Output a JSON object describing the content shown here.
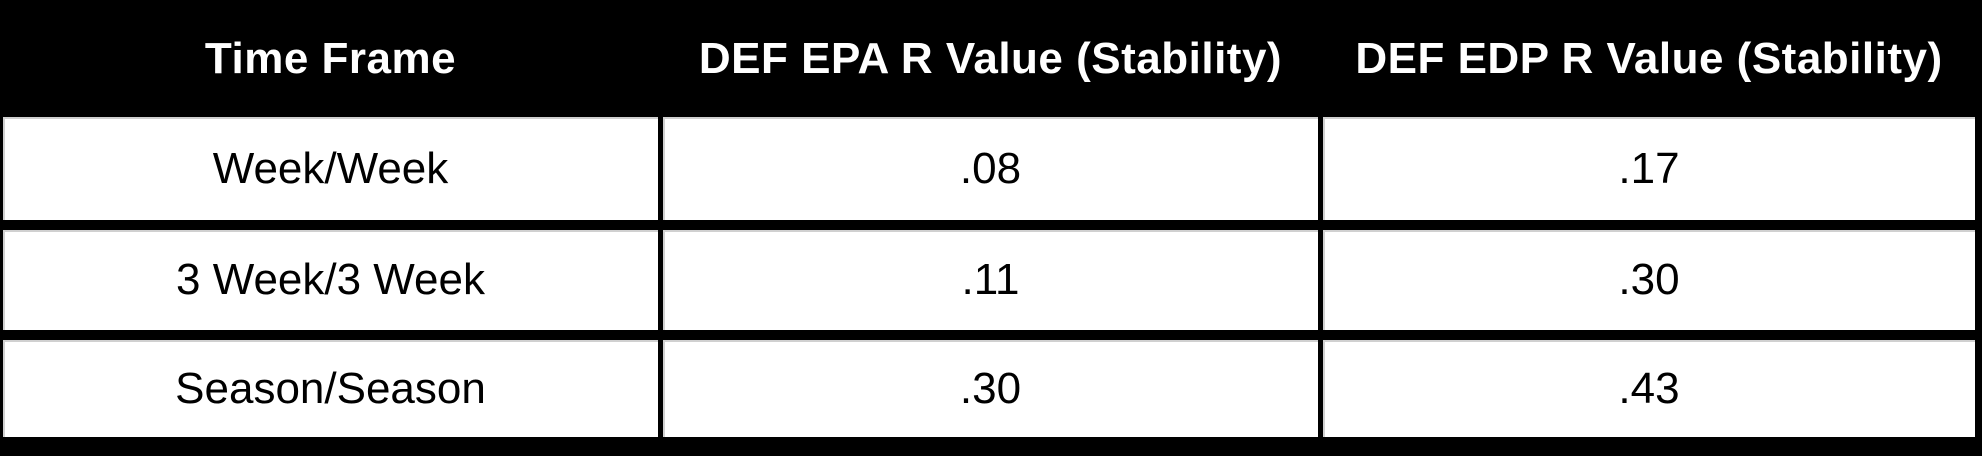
{
  "chart_data": {
    "type": "table",
    "columns": [
      "Time Frame",
      "DEF EPA R Value (Stability)",
      "DEF EDP R Value (Stability)"
    ],
    "rows": [
      [
        "Week/Week",
        ".08",
        ".17"
      ],
      [
        "3 Week/3 Week",
        ".11",
        ".30"
      ],
      [
        "Season/Season",
        ".30",
        ".43"
      ]
    ]
  },
  "colors": {
    "background": "#000000",
    "header_background": "#000000",
    "header_text": "#FFFFFF",
    "cell_background": "#FFFFFF",
    "cell_text": "#000000",
    "grid_border": "#000000",
    "inner_seam": "#969696"
  }
}
